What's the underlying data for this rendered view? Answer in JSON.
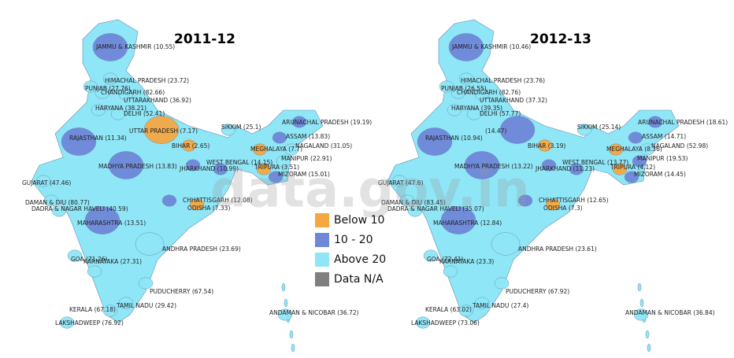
{
  "watermark": "data.gov.in",
  "legend": {
    "breaks": [
      10,
      20
    ],
    "items": [
      {
        "label": "Below 10",
        "color": "#f5a742"
      },
      {
        "label": "10 - 20",
        "color": "#6f87d8"
      },
      {
        "label": "Above 20",
        "color": "#8fe6f7"
      },
      {
        "label": "Data N/A",
        "color": "#7f7f7f"
      }
    ]
  },
  "maps": [
    {
      "title": "2011-12",
      "regions": [
        {
          "name": "JAMMU & KASHMIR",
          "value": 10.55,
          "value_label": "(10.55)"
        },
        {
          "name": "HIMACHAL PRADESH",
          "value": 23.72,
          "value_label": "(23.72)"
        },
        {
          "name": "PUNJAB",
          "value": 27.76,
          "value_label": "(27.76)"
        },
        {
          "name": "CHANDIGARH",
          "value": 82.66,
          "value_label": "(82.66)"
        },
        {
          "name": "UTTARAKHAND",
          "value": 36.92,
          "value_label": "(36.92)"
        },
        {
          "name": "HARYANA",
          "value": 38.21,
          "value_label": "(38.21)"
        },
        {
          "name": "DELHI",
          "value": 52.41,
          "value_label": "(52.41)"
        },
        {
          "name": "UTTAR PRADESH",
          "value": 7.17,
          "value_label": "(7.17)"
        },
        {
          "name": "RAJASTHAN",
          "value": 11.34,
          "value_label": "(11.34)"
        },
        {
          "name": "BIHAR",
          "value": 2.65,
          "value_label": "(2.65)"
        },
        {
          "name": "SIKKIM",
          "value": 25.1,
          "value_label": "(25.1)"
        },
        {
          "name": "ARUNACHAL PRADESH",
          "value": 19.19,
          "value_label": "(19.19)"
        },
        {
          "name": "ASSAM",
          "value": 13.83,
          "value_label": "(13.83)"
        },
        {
          "name": "MEGHALAYA",
          "value": 7.7,
          "value_label": "(7.7)"
        },
        {
          "name": "NAGALAND",
          "value": 31.05,
          "value_label": "(31.05)"
        },
        {
          "name": "MANIPUR",
          "value": 22.91,
          "value_label": "(22.91)"
        },
        {
          "name": "WEST BENGAL",
          "value": 14.15,
          "value_label": "(14.15)"
        },
        {
          "name": "JHARKHAND",
          "value": 10.99,
          "value_label": "(10.99)"
        },
        {
          "name": "TRIPURA",
          "value": 3.51,
          "value_label": "(3.51)"
        },
        {
          "name": "MIZORAM",
          "value": 15.01,
          "value_label": "(15.01)"
        },
        {
          "name": "MADHYA PRADESH",
          "value": 13.83,
          "value_label": "(13.83)"
        },
        {
          "name": "GUJARAT",
          "value": 47.46,
          "value_label": "(47.46)"
        },
        {
          "name": "CHHATTISGARH",
          "value": 12.08,
          "value_label": "(12.08)"
        },
        {
          "name": "ODISHA",
          "value": 7.33,
          "value_label": "(7.33)"
        },
        {
          "name": "DAMAN & DIU",
          "value": 80.77,
          "value_label": "(80.77)"
        },
        {
          "name": "DADRA & NAGAR HAVELI",
          "value": 40.59,
          "value_label": "(40.59)"
        },
        {
          "name": "MAHARASHTRA",
          "value": 13.51,
          "value_label": "(13.51)"
        },
        {
          "name": "ANDHRA PRADESH",
          "value": 23.69,
          "value_label": "(23.69)"
        },
        {
          "name": "GOA",
          "value": 71.26,
          "value_label": "(71.26)"
        },
        {
          "name": "KARNATAKA",
          "value": 27.31,
          "value_label": "(27.31)"
        },
        {
          "name": "PUDUCHERRY",
          "value": 67.54,
          "value_label": "(67.54)"
        },
        {
          "name": "TAMIL NADU",
          "value": 29.42,
          "value_label": "(29.42)"
        },
        {
          "name": "KERALA",
          "value": 67.18,
          "value_label": "(67.18)"
        },
        {
          "name": "LAKSHADWEEP",
          "value": 76.92,
          "value_label": "(76.92)"
        },
        {
          "name": "ANDAMAN & NICOBAR",
          "value": 36.72,
          "value_label": "(36.72)"
        }
      ]
    },
    {
      "title": "2012-13",
      "regions": [
        {
          "name": "JAMMU & KASHMIR",
          "value": 10.46,
          "value_label": "(10.46)"
        },
        {
          "name": "HIMACHAL PRADESH",
          "value": 23.76,
          "value_label": "(23.76)"
        },
        {
          "name": "PUNJAB",
          "value": 26.55,
          "value_label": "(26.55)"
        },
        {
          "name": "CHANDIGARH",
          "value": 82.76,
          "value_label": "(82.76)"
        },
        {
          "name": "UTTARAKHAND",
          "value": 37.32,
          "value_label": "(37.32)"
        },
        {
          "name": "HARYANA",
          "value": 39.35,
          "value_label": "(39.35)"
        },
        {
          "name": "DELHI",
          "value": 57.77,
          "value_label": "(57.77)"
        },
        {
          "name": null,
          "value": 14.47,
          "value_label": "(14.47)"
        },
        {
          "name": "RAJASTHAN",
          "value": 10.94,
          "value_label": "(10.94)"
        },
        {
          "name": "BIHAR",
          "value": 3.19,
          "value_label": "(3.19)"
        },
        {
          "name": "SIKKIM",
          "value": 25.14,
          "value_label": "(25.14)"
        },
        {
          "name": "ARUNACHAL PRADESH",
          "value": 18.61,
          "value_label": "(18.61)"
        },
        {
          "name": "ASSAM",
          "value": 14.71,
          "value_label": "(14.71)"
        },
        {
          "name": "MEGHALAYA",
          "value": 8.36,
          "value_label": "(8.36)"
        },
        {
          "name": "NAGALAND",
          "value": 52.98,
          "value_label": "(52.98)"
        },
        {
          "name": "MANIPUR",
          "value": 19.53,
          "value_label": "(19.53)"
        },
        {
          "name": "WEST BENGAL",
          "value": 13.77,
          "value_label": "(13.77)"
        },
        {
          "name": "JHARKHAND",
          "value": 11.23,
          "value_label": "(11.23)"
        },
        {
          "name": "TRIPURA",
          "value": 4.12,
          "value_label": "(4.12)"
        },
        {
          "name": "MIZORAM",
          "value": 14.45,
          "value_label": "(14.45)"
        },
        {
          "name": "MADHYA PRADESH",
          "value": 13.22,
          "value_label": "(13.22)"
        },
        {
          "name": "GUJARAT",
          "value": 47.6,
          "value_label": "(47.6)"
        },
        {
          "name": "CHHATTISGARH",
          "value": 12.65,
          "value_label": "(12.65)"
        },
        {
          "name": "ODISHA",
          "value": 7.3,
          "value_label": "(7.3)"
        },
        {
          "name": "DAMAN & DIU",
          "value": 83.45,
          "value_label": "(83.45)"
        },
        {
          "name": "DADRA & NAGAR HAVELI",
          "value": 35.07,
          "value_label": "(35.07)"
        },
        {
          "name": "MAHARASHTRA",
          "value": 12.84,
          "value_label": "(12.84)"
        },
        {
          "name": "ANDHRA PRADESH",
          "value": 23.61,
          "value_label": "(23.61)"
        },
        {
          "name": "GOA",
          "value": 72.41,
          "value_label": "(72.41)"
        },
        {
          "name": "KARNATAKA",
          "value": 23.3,
          "value_label": "(23.3)"
        },
        {
          "name": "PUDUCHERRY",
          "value": 67.92,
          "value_label": "(67.92)"
        },
        {
          "name": "TAMIL NADU",
          "value": 27.4,
          "value_label": "(27.4)"
        },
        {
          "name": "KERALA",
          "value": 63.02,
          "value_label": "(63.02)"
        },
        {
          "name": "LAKSHADWEEP",
          "value": 73.06,
          "value_label": "(73.06)"
        },
        {
          "name": "ANDAMAN & NICOBAR",
          "value": 36.84,
          "value_label": "(36.84)"
        }
      ]
    }
  ]
}
